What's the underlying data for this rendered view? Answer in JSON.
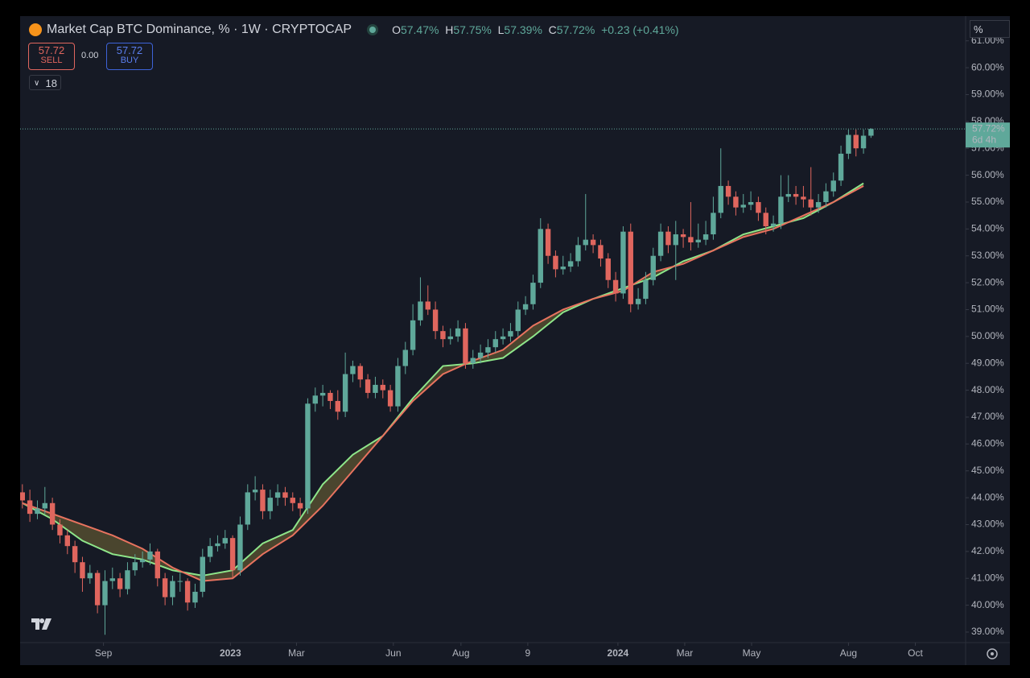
{
  "chart_data": {
    "type": "candlestick",
    "title": "Market Cap BTC Dominance, % · 1W · CRYPTOCAP",
    "header": {
      "o_key": "O",
      "open": "57.47%",
      "h_key": "H",
      "high": "57.75%",
      "l_key": "L",
      "low": "57.39%",
      "c_key": "C",
      "close": "57.72%",
      "change": "+0.23 (+0.41%)",
      "sell_price": "57.72",
      "sell": "SELL",
      "spread": "0.00",
      "buy_price": "57.72",
      "buy": "BUY",
      "indicators": "18",
      "unit": "%"
    },
    "up_color": "#5fa89a",
    "down_color": "#e0665e",
    "xlim": [
      -0.3,
      125.6
    ],
    "xticks": [
      {
        "value": 10.8,
        "label": "Sep"
      },
      {
        "value": 27.7,
        "label": "2023"
      },
      {
        "value": 36.5,
        "label": "Mar"
      },
      {
        "value": 49.4,
        "label": "Jun"
      },
      {
        "value": 58.4,
        "label": "Aug"
      },
      {
        "value": 67.3,
        "label": "9"
      },
      {
        "value": 79.3,
        "label": "2024"
      },
      {
        "value": 88.2,
        "label": "Mar"
      },
      {
        "value": 97.1,
        "label": "May"
      },
      {
        "value": 110,
        "label": "Aug"
      },
      {
        "value": 118.9,
        "label": "Oct"
      }
    ],
    "ylim": [
      38.61,
      61.92
    ],
    "yticks": [
      {
        "value": 39,
        "label": "39.00%"
      },
      {
        "value": 40,
        "label": "40.00%"
      },
      {
        "value": 41,
        "label": "41.00%"
      },
      {
        "value": 42,
        "label": "42.00%"
      },
      {
        "value": 43,
        "label": "43.00%"
      },
      {
        "value": 44,
        "label": "44.00%"
      },
      {
        "value": 45,
        "label": "45.00%"
      },
      {
        "value": 46,
        "label": "46.00%"
      },
      {
        "value": 47,
        "label": "47.00%"
      },
      {
        "value": 48,
        "label": "48.00%"
      },
      {
        "value": 49,
        "label": "49.00%"
      },
      {
        "value": 50,
        "label": "50.00%"
      },
      {
        "value": 51,
        "label": "51.00%"
      },
      {
        "value": 52,
        "label": "52.00%"
      },
      {
        "value": 53,
        "label": "53.00%"
      },
      {
        "value": 54,
        "label": "54.00%"
      },
      {
        "value": 55,
        "label": "55.00%"
      },
      {
        "value": 56,
        "label": "56.00%"
      },
      {
        "value": 57,
        "label": "57.00%"
      },
      {
        "value": 58,
        "label": "58.00%"
      },
      {
        "value": 59,
        "label": "59.00%"
      },
      {
        "value": 60,
        "label": "60.00%"
      },
      {
        "value": 61,
        "label": "61.00%"
      }
    ],
    "last_price": {
      "value": 57.72,
      "label": "57.72%",
      "countdown": "6d 4h",
      "color": "#5fa89a"
    },
    "candles": [
      [
        44.2,
        44.5,
        43.6,
        43.9
      ],
      [
        43.9,
        44.3,
        43.1,
        43.4
      ],
      [
        43.4,
        43.9,
        43.2,
        43.6
      ],
      [
        43.6,
        44.4,
        43.4,
        43.8
      ],
      [
        43.8,
        44.0,
        42.8,
        43.0
      ],
      [
        43.0,
        43.2,
        42.3,
        42.6
      ],
      [
        42.6,
        42.8,
        41.9,
        42.2
      ],
      [
        42.2,
        42.4,
        41.2,
        41.6
      ],
      [
        41.6,
        41.8,
        40.5,
        41.0
      ],
      [
        41.0,
        41.5,
        40.8,
        41.2
      ],
      [
        41.2,
        41.3,
        39.7,
        40.0
      ],
      [
        40.0,
        41.3,
        38.9,
        40.9
      ],
      [
        40.9,
        41.4,
        40.6,
        41.0
      ],
      [
        41.0,
        41.2,
        40.3,
        40.6
      ],
      [
        40.6,
        41.6,
        40.4,
        41.3
      ],
      [
        41.3,
        41.9,
        41.1,
        41.6
      ],
      [
        41.6,
        42.0,
        41.4,
        41.7
      ],
      [
        41.7,
        42.3,
        41.5,
        42.0
      ],
      [
        42.0,
        42.1,
        40.7,
        41.0
      ],
      [
        41.0,
        41.2,
        40.0,
        40.3
      ],
      [
        40.3,
        41.1,
        40.0,
        40.9
      ],
      [
        40.9,
        41.2,
        40.5,
        40.9
      ],
      [
        40.9,
        41.0,
        39.8,
        40.1
      ],
      [
        40.1,
        40.8,
        39.9,
        40.5
      ],
      [
        40.5,
        42.1,
        40.3,
        41.8
      ],
      [
        41.8,
        42.5,
        41.6,
        42.2
      ],
      [
        42.2,
        42.6,
        42.0,
        42.3
      ],
      [
        42.3,
        42.8,
        42.1,
        42.5
      ],
      [
        42.5,
        42.6,
        41.0,
        41.3
      ],
      [
        41.3,
        43.3,
        41.1,
        43.0
      ],
      [
        43.0,
        44.5,
        42.8,
        44.2
      ],
      [
        44.2,
        44.8,
        43.9,
        44.3
      ],
      [
        44.3,
        44.5,
        43.2,
        43.5
      ],
      [
        43.5,
        44.3,
        43.2,
        44.0
      ],
      [
        44.0,
        44.5,
        43.7,
        44.2
      ],
      [
        44.2,
        44.4,
        43.7,
        44.0
      ],
      [
        44.0,
        44.2,
        43.5,
        43.8
      ],
      [
        43.8,
        44.0,
        43.3,
        43.6
      ],
      [
        43.6,
        47.7,
        43.4,
        47.5
      ],
      [
        47.5,
        48.1,
        47.2,
        47.8
      ],
      [
        47.8,
        48.2,
        47.4,
        47.9
      ],
      [
        47.9,
        48.0,
        47.3,
        47.6
      ],
      [
        47.6,
        48.0,
        46.9,
        47.2
      ],
      [
        47.2,
        49.4,
        47.0,
        48.6
      ],
      [
        48.6,
        49.1,
        48.3,
        48.9
      ],
      [
        48.9,
        49.0,
        48.1,
        48.4
      ],
      [
        48.4,
        48.6,
        47.7,
        47.9
      ],
      [
        47.9,
        48.5,
        47.7,
        48.2
      ],
      [
        48.2,
        48.4,
        47.7,
        48.0
      ],
      [
        48.0,
        48.2,
        47.2,
        47.4
      ],
      [
        47.4,
        49.2,
        47.2,
        48.9
      ],
      [
        48.9,
        49.8,
        48.6,
        49.5
      ],
      [
        49.5,
        51.2,
        49.3,
        50.6
      ],
      [
        50.6,
        52.2,
        50.4,
        51.3
      ],
      [
        51.3,
        51.9,
        50.8,
        51.0
      ],
      [
        51.0,
        51.3,
        49.9,
        50.2
      ],
      [
        50.2,
        50.4,
        49.6,
        49.9
      ],
      [
        49.9,
        50.3,
        49.7,
        50.0
      ],
      [
        50.0,
        50.6,
        49.8,
        50.3
      ],
      [
        50.3,
        50.5,
        48.8,
        49.0
      ],
      [
        49.0,
        49.5,
        48.8,
        49.2
      ],
      [
        49.2,
        49.7,
        49.0,
        49.4
      ],
      [
        49.4,
        49.9,
        49.2,
        49.6
      ],
      [
        49.6,
        50.2,
        49.4,
        49.9
      ],
      [
        49.9,
        50.3,
        49.7,
        50.0
      ],
      [
        50.0,
        50.5,
        49.8,
        50.2
      ],
      [
        50.2,
        51.3,
        50.0,
        51.0
      ],
      [
        51.0,
        51.5,
        50.8,
        51.2
      ],
      [
        51.2,
        52.3,
        51.0,
        52.0
      ],
      [
        52.0,
        54.4,
        51.8,
        54.0
      ],
      [
        54.0,
        54.2,
        52.7,
        53.0
      ],
      [
        53.0,
        53.2,
        52.2,
        52.5
      ],
      [
        52.5,
        53.0,
        52.3,
        52.6
      ],
      [
        52.6,
        53.1,
        52.4,
        52.8
      ],
      [
        52.8,
        53.7,
        52.6,
        53.4
      ],
      [
        53.4,
        55.3,
        53.2,
        53.6
      ],
      [
        53.6,
        53.8,
        53.1,
        53.4
      ],
      [
        53.4,
        53.6,
        52.6,
        52.9
      ],
      [
        52.9,
        53.1,
        51.8,
        52.1
      ],
      [
        52.1,
        52.4,
        51.3,
        51.6
      ],
      [
        51.6,
        54.1,
        51.4,
        53.9
      ],
      [
        53.9,
        54.2,
        50.9,
        51.2
      ],
      [
        51.2,
        51.8,
        51.0,
        51.4
      ],
      [
        51.4,
        52.4,
        51.2,
        52.1
      ],
      [
        52.1,
        53.3,
        51.9,
        53.0
      ],
      [
        53.0,
        54.2,
        52.8,
        53.9
      ],
      [
        53.9,
        54.1,
        53.1,
        53.4
      ],
      [
        53.4,
        54.3,
        52.1,
        53.8
      ],
      [
        53.8,
        54.0,
        53.3,
        53.7
      ],
      [
        53.7,
        55.0,
        53.2,
        53.5
      ],
      [
        53.5,
        54.2,
        53.3,
        53.6
      ],
      [
        53.6,
        54.3,
        53.4,
        53.8
      ],
      [
        53.8,
        55.2,
        53.6,
        54.6
      ],
      [
        54.6,
        57.0,
        54.4,
        55.6
      ],
      [
        55.6,
        55.8,
        54.9,
        55.2
      ],
      [
        55.2,
        55.4,
        54.5,
        54.8
      ],
      [
        54.8,
        55.3,
        54.6,
        54.9
      ],
      [
        54.9,
        55.4,
        54.7,
        55.0
      ],
      [
        55.0,
        55.2,
        54.3,
        54.6
      ],
      [
        54.6,
        54.8,
        53.8,
        54.1
      ],
      [
        54.1,
        54.5,
        53.9,
        54.2
      ],
      [
        54.2,
        56.0,
        54.0,
        55.2
      ],
      [
        55.2,
        56.0,
        55.0,
        55.3
      ],
      [
        55.3,
        55.6,
        54.9,
        55.2
      ],
      [
        55.2,
        55.6,
        54.8,
        55.1
      ],
      [
        55.1,
        56.3,
        54.5,
        54.8
      ],
      [
        54.8,
        55.3,
        54.6,
        55.0
      ],
      [
        55.0,
        55.7,
        54.8,
        55.4
      ],
      [
        55.4,
        56.1,
        55.2,
        55.8
      ],
      [
        55.8,
        57.1,
        55.6,
        56.8
      ],
      [
        56.8,
        57.7,
        56.6,
        57.5
      ],
      [
        57.5,
        57.7,
        56.7,
        57.0
      ],
      [
        57.0,
        57.7,
        56.8,
        57.47
      ],
      [
        57.47,
        57.75,
        57.39,
        57.72
      ]
    ],
    "ma_x": [
      0,
      4,
      8,
      12,
      16,
      20,
      24,
      28,
      32,
      36,
      40,
      44,
      48,
      52,
      56,
      60,
      64,
      68,
      72,
      76,
      80,
      84,
      88,
      92,
      96,
      100,
      104,
      108,
      112
    ],
    "series": [
      {
        "color": "#8ee68a",
        "values": [
          43.8,
          43.2,
          42.4,
          41.9,
          41.7,
          41.3,
          41.1,
          41.3,
          42.3,
          42.8,
          44.5,
          45.6,
          46.3,
          47.7,
          48.9,
          49.0,
          49.2,
          50.0,
          50.9,
          51.4,
          51.8,
          52.2,
          52.8,
          53.2,
          53.8,
          54.1,
          54.4,
          55.0,
          55.7
        ]
      },
      {
        "color": "#e8735f",
        "values": [
          43.8,
          43.4,
          43.0,
          42.6,
          42.1,
          41.4,
          40.9,
          41.0,
          41.9,
          42.6,
          43.7,
          45.0,
          46.3,
          47.6,
          48.6,
          49.1,
          49.5,
          50.4,
          51.0,
          51.4,
          51.7,
          52.4,
          52.7,
          53.2,
          53.7,
          54.0,
          54.5,
          55.0,
          55.6
        ]
      }
    ]
  }
}
